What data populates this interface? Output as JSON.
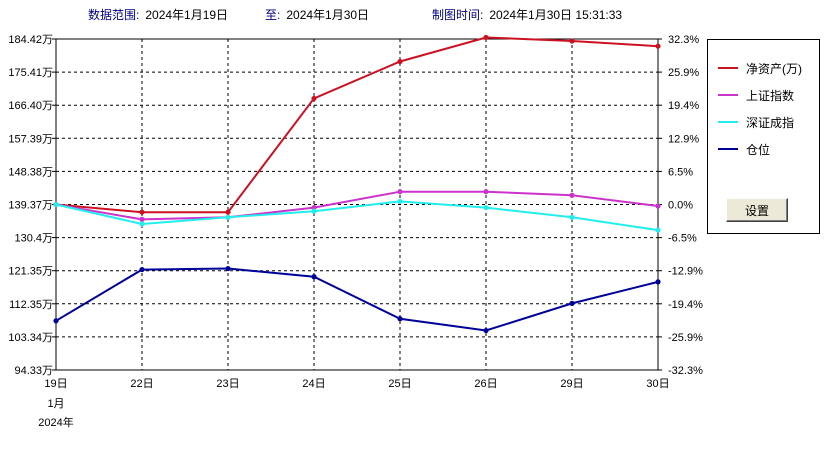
{
  "header": {
    "range_label": "数据范围:",
    "range_start": "2024年1月19日",
    "to_label": "至:",
    "range_end": "2024年1月30日",
    "plot_time_label": "制图时间:",
    "plot_time": "2024年1月30日 15:31:33"
  },
  "legend": {
    "button_label": "设置"
  },
  "chart_data": {
    "type": "line",
    "x": [
      "19日",
      "22日",
      "23日",
      "24日",
      "25日",
      "26日",
      "29日",
      "30日"
    ],
    "x_sub_labels": [
      "1月",
      "2024年"
    ],
    "y_left_ticks": [
      "184.42万",
      "175.41万",
      "166.40万",
      "157.39万",
      "148.38万",
      "139.37万",
      "130.4万",
      "121.35万",
      "112.35万",
      "103.34万",
      "94.33万"
    ],
    "y_right_ticks": [
      "32.3%",
      "25.9%",
      "19.4%",
      "12.9%",
      "6.5%",
      "0.0%",
      "-6.5%",
      "-12.9%",
      "-19.4%",
      "-25.9%",
      "-32.3%"
    ],
    "ylim": [
      -32.3,
      32.3
    ],
    "grid": true,
    "legend_position": "right",
    "series": [
      {
        "name": "净资产(万)",
        "color": "#cc1122",
        "values": [
          0.0,
          -1.5,
          -1.5,
          20.7,
          27.9,
          32.6,
          31.9,
          30.9
        ]
      },
      {
        "name": "上证指数",
        "color": "#cc33cc",
        "values": [
          0.0,
          -2.9,
          -2.5,
          -0.6,
          2.5,
          2.5,
          1.8,
          -0.3
        ]
      },
      {
        "name": "深证成指",
        "color": "#22eeee",
        "values": [
          0.0,
          -3.8,
          -2.5,
          -1.3,
          0.6,
          -0.6,
          -2.5,
          -5.0
        ]
      },
      {
        "name": "仓位",
        "color": "#000099",
        "values": [
          -22.7,
          -12.7,
          -12.5,
          -14.1,
          -22.3,
          -24.6,
          -19.3,
          -15.1
        ]
      }
    ]
  }
}
